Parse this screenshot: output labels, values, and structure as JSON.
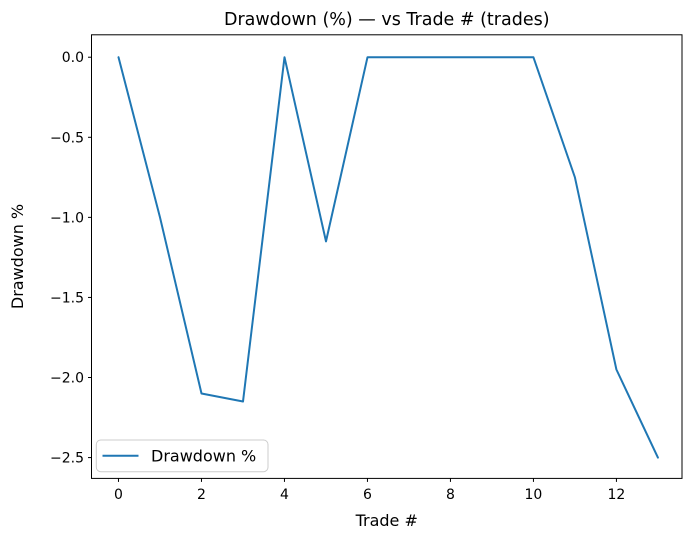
{
  "chart_data": {
    "type": "line",
    "title": "Drawdown (%) — vs Trade # (trades)",
    "xlabel": "Trade #",
    "ylabel": "Drawdown %",
    "x": [
      0,
      1,
      2,
      3,
      4,
      5,
      6,
      7,
      8,
      9,
      10,
      11,
      12,
      13
    ],
    "series": [
      {
        "name": "Drawdown %",
        "color": "#1f77b4",
        "values": [
          0.0,
          -1.0,
          -2.1,
          -2.15,
          0.0,
          -1.15,
          0.0,
          0.0,
          0.0,
          0.0,
          0.0,
          -0.75,
          -1.95,
          -2.5
        ]
      }
    ],
    "xlim": [
      -0.65,
      13.58
    ],
    "ylim": [
      -2.63,
      0.14
    ],
    "xticks": [
      0,
      2,
      4,
      6,
      8,
      10,
      12
    ],
    "xtick_labels": [
      "0",
      "2",
      "4",
      "6",
      "8",
      "10",
      "12"
    ],
    "yticks": [
      0.0,
      -0.5,
      -1.0,
      -1.5,
      -2.0,
      -2.5
    ],
    "ytick_labels": [
      "0.0",
      "−0.5",
      "−1.0",
      "−1.5",
      "−2.0",
      "−2.5"
    ],
    "grid": false,
    "legend": {
      "position": "lower left",
      "entries": [
        "Drawdown %"
      ]
    }
  },
  "colors": {
    "line": "#1f77b4",
    "spine": "#000000",
    "background": "#ffffff",
    "legend_border": "#cccccc"
  }
}
